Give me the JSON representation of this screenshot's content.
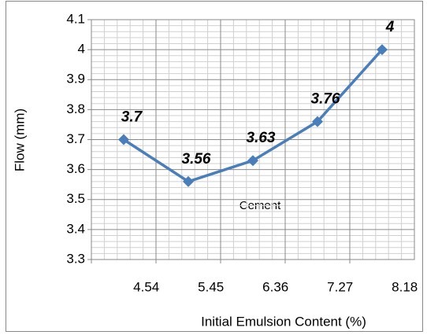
{
  "chart_data": {
    "type": "line",
    "x_label": "Initial Emulsion Content (%)",
    "y_label": "Flow (mm)",
    "annotation": "Cement",
    "categories": [
      "4.54",
      "5.45",
      "6.36",
      "7.27",
      "8.18"
    ],
    "series": [
      {
        "color": "#4a7ebb",
        "values": [
          3.7,
          3.56,
          3.63,
          3.76,
          4
        ]
      }
    ],
    "ylim": [
      3.3,
      4.1
    ],
    "yticks": [
      3.3,
      3.4,
      3.5,
      3.6,
      3.7,
      3.8,
      3.9,
      4,
      4.1
    ],
    "grid": true,
    "minor_grid": true
  }
}
